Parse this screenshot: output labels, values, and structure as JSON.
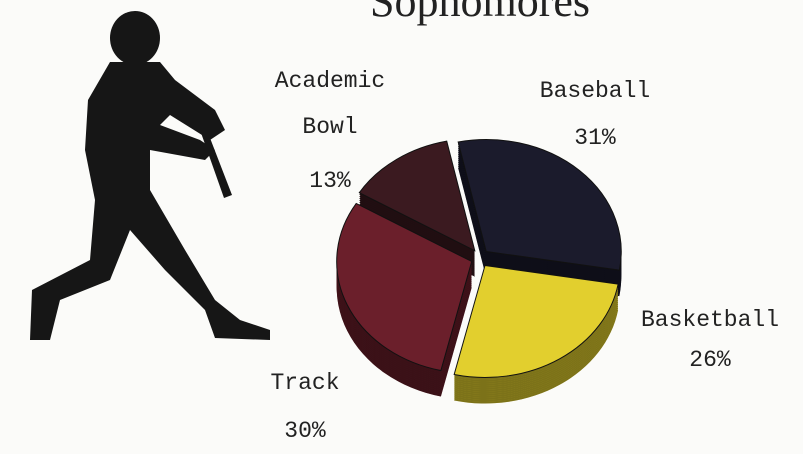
{
  "chart_data": {
    "type": "pie",
    "title": "Sophomores",
    "categories": [
      "Academic Bowl",
      "Baseball",
      "Basketball",
      "Track"
    ],
    "values": [
      13,
      31,
      26,
      30
    ],
    "value_labels": [
      "13%",
      "31%",
      "26%",
      "30%"
    ],
    "colors": [
      "#3b1a20",
      "#1b1b2c",
      "#e2cf2e",
      "#6b1f2b"
    ]
  }
}
